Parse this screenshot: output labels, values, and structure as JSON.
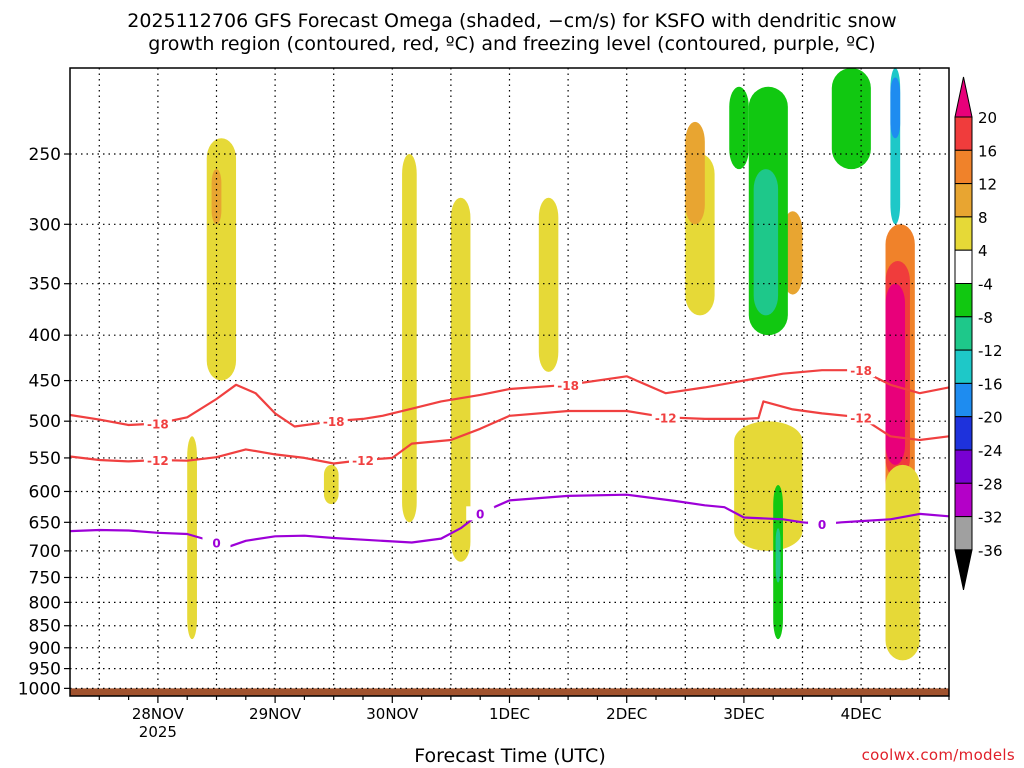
{
  "title_line1": "2025112706 GFS Forecast Omega (shaded, −cm/s) for KSFO with dendritic snow",
  "title_line2": "growth region (contoured, red, ºC) and freezing level (contoured, purple, ºC)",
  "credit": "coolwx.com/models",
  "chart_data": {
    "type": "heatmap",
    "title": "2025112706 GFS Forecast Omega (shaded, −cm/s) for KSFO with dendritic snow growth region (contoured, red, ºC) and freezing level (contoured, purple, ºC)",
    "xlabel": "Forecast Time (UTC)",
    "ylabel": "",
    "y_scale": "log-pressure",
    "y_inverted": true,
    "ylim": [
      1020,
      200
    ],
    "y_ticks": [
      250,
      300,
      350,
      400,
      450,
      500,
      550,
      600,
      650,
      700,
      750,
      800,
      850,
      900,
      950,
      1000
    ],
    "xlim_hours_from_28nov00z": [
      -18,
      162
    ],
    "x_ticks": [
      {
        "label": "28NOV",
        "sublabel": "2025",
        "hour": 0
      },
      {
        "label": "29NOV",
        "sublabel": "",
        "hour": 24
      },
      {
        "label": "30NOV",
        "sublabel": "",
        "hour": 48
      },
      {
        "label": "1DEC",
        "sublabel": "",
        "hour": 72
      },
      {
        "label": "2DEC",
        "sublabel": "",
        "hour": 96
      },
      {
        "label": "3DEC",
        "sublabel": "",
        "hour": 120
      },
      {
        "label": "4DEC",
        "sublabel": "",
        "hour": 144
      }
    ],
    "grid": true,
    "colorbar": {
      "labels": [
        "20",
        "16",
        "12",
        "8",
        "4",
        "-4",
        "-8",
        "-12",
        "-16",
        "-20",
        "-24",
        "-28",
        "-32",
        "-36"
      ],
      "colors": [
        "#e8007a",
        "#f03c3c",
        "#f0822a",
        "#e8a531",
        "#e6d937",
        "#ffffff",
        "#11c811",
        "#1ec88a",
        "#1ec8c8",
        "#1e8cf0",
        "#1e32dc",
        "#7800d2",
        "#b400c8",
        "#a0a0a0"
      ]
    },
    "terrain_color": "#a0522d",
    "contours": [
      {
        "name": "-18",
        "color": "#f04040",
        "labels": [
          "-18",
          "-18",
          "-18",
          "-18"
        ],
        "points": [
          [
            -18,
            492
          ],
          [
            -12,
            498
          ],
          [
            -6,
            505
          ],
          [
            0,
            503
          ],
          [
            6,
            495
          ],
          [
            12,
            472
          ],
          [
            16,
            455
          ],
          [
            20,
            465
          ],
          [
            24,
            490
          ],
          [
            28,
            507
          ],
          [
            36,
            500
          ],
          [
            42,
            497
          ],
          [
            46,
            493
          ],
          [
            52,
            484
          ],
          [
            58,
            475
          ],
          [
            66,
            467
          ],
          [
            72,
            460
          ],
          [
            84,
            455
          ],
          [
            96,
            445
          ],
          [
            104,
            465
          ],
          [
            112,
            458
          ],
          [
            120,
            450
          ],
          [
            128,
            442
          ],
          [
            136,
            438
          ],
          [
            144,
            438
          ],
          [
            150,
            455
          ],
          [
            156,
            465
          ],
          [
            162,
            458
          ]
        ]
      },
      {
        "name": "-12",
        "color": "#f04040",
        "labels": [
          "-12",
          "-12",
          "-12",
          "-12"
        ],
        "points": [
          [
            -18,
            548
          ],
          [
            -12,
            553
          ],
          [
            -6,
            555
          ],
          [
            0,
            553
          ],
          [
            6,
            554
          ],
          [
            12,
            549
          ],
          [
            18,
            538
          ],
          [
            24,
            545
          ],
          [
            30,
            550
          ],
          [
            36,
            558
          ],
          [
            42,
            553
          ],
          [
            48,
            550
          ],
          [
            52,
            530
          ],
          [
            60,
            525
          ],
          [
            66,
            510
          ],
          [
            72,
            493
          ],
          [
            84,
            487
          ],
          [
            96,
            487
          ],
          [
            104,
            495
          ],
          [
            112,
            497
          ],
          [
            120,
            497
          ],
          [
            123,
            496
          ],
          [
            124,
            475
          ],
          [
            130,
            485
          ],
          [
            136,
            490
          ],
          [
            144,
            495
          ],
          [
            150,
            520
          ],
          [
            156,
            525
          ],
          [
            162,
            520
          ]
        ]
      },
      {
        "name": "0",
        "color": "#9d00d8",
        "labels": [
          "0",
          "0",
          "0"
        ],
        "points": [
          [
            -18,
            665
          ],
          [
            -12,
            663
          ],
          [
            -6,
            664
          ],
          [
            0,
            668
          ],
          [
            6,
            670
          ],
          [
            12,
            685
          ],
          [
            14,
            694
          ],
          [
            18,
            682
          ],
          [
            24,
            674
          ],
          [
            30,
            673
          ],
          [
            36,
            677
          ],
          [
            42,
            680
          ],
          [
            48,
            683
          ],
          [
            52,
            685
          ],
          [
            58,
            678
          ],
          [
            62,
            660
          ],
          [
            66,
            635
          ],
          [
            72,
            614
          ],
          [
            84,
            607
          ],
          [
            96,
            605
          ],
          [
            106,
            615
          ],
          [
            112,
            622
          ],
          [
            116,
            625
          ],
          [
            120,
            642
          ],
          [
            128,
            645
          ],
          [
            132,
            650
          ],
          [
            136,
            653
          ],
          [
            140,
            650
          ],
          [
            144,
            648
          ],
          [
            150,
            645
          ],
          [
            156,
            636
          ],
          [
            162,
            640
          ]
        ]
      }
    ],
    "shaded_features": [
      {
        "level": "4",
        "x": [
          10,
          16
        ],
        "p": [
          240,
          450
        ]
      },
      {
        "level": "8",
        "x": [
          11,
          13
        ],
        "p": [
          260,
          300
        ]
      },
      {
        "level": "4",
        "x": [
          6,
          8
        ],
        "p": [
          520,
          880
        ]
      },
      {
        "level": "4",
        "x": [
          34,
          37
        ],
        "p": [
          560,
          620
        ]
      },
      {
        "level": "4",
        "x": [
          50,
          53
        ],
        "p": [
          250,
          650
        ]
      },
      {
        "level": "4",
        "x": [
          60,
          64
        ],
        "p": [
          280,
          720
        ]
      },
      {
        "level": "4",
        "x": [
          78,
          82
        ],
        "p": [
          280,
          440
        ]
      },
      {
        "level": "4",
        "x": [
          108,
          114
        ],
        "p": [
          250,
          380
        ]
      },
      {
        "level": "8",
        "x": [
          108,
          112
        ],
        "p": [
          230,
          300
        ]
      },
      {
        "level": "4",
        "x": [
          118,
          132
        ],
        "p": [
          500,
          700
        ]
      },
      {
        "level": "8",
        "x": [
          128,
          132
        ],
        "p": [
          290,
          360
        ]
      },
      {
        "level": "-8",
        "x": [
          117,
          121
        ],
        "p": [
          210,
          260
        ]
      },
      {
        "level": "-8",
        "x": [
          121,
          129
        ],
        "p": [
          210,
          400
        ]
      },
      {
        "level": "-12",
        "x": [
          122,
          127
        ],
        "p": [
          260,
          380
        ]
      },
      {
        "level": "-8",
        "x": [
          138,
          146
        ],
        "p": [
          200,
          260
        ]
      },
      {
        "level": "-8",
        "x": [
          126,
          128
        ],
        "p": [
          590,
          880
        ]
      },
      {
        "level": "-12",
        "x": [
          126.5,
          127.5
        ],
        "p": [
          660,
          760
        ]
      },
      {
        "level": "-16",
        "x": [
          150,
          152
        ],
        "p": [
          200,
          300
        ]
      },
      {
        "level": "-20",
        "x": [
          150,
          152
        ],
        "p": [
          205,
          240
        ]
      },
      {
        "level": "12",
        "x": [
          149,
          155
        ],
        "p": [
          300,
          620
        ]
      },
      {
        "level": "16",
        "x": [
          149,
          154
        ],
        "p": [
          330,
          580
        ]
      },
      {
        "level": "20",
        "x": [
          149,
          153
        ],
        "p": [
          350,
          560
        ]
      },
      {
        "level": "4",
        "x": [
          149,
          156
        ],
        "p": [
          560,
          930
        ]
      }
    ]
  }
}
